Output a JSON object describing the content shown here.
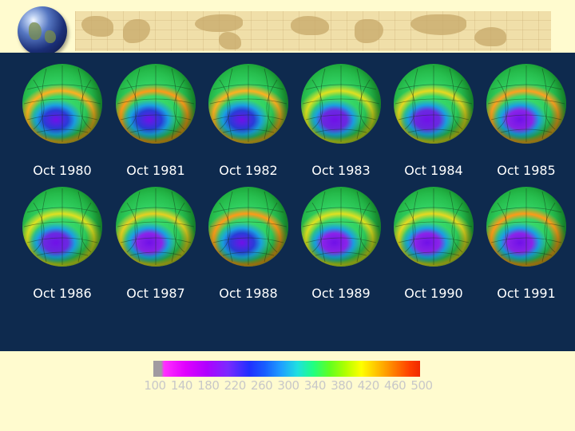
{
  "panels": [
    {
      "label": "Oct 1980"
    },
    {
      "label": "Oct 1981"
    },
    {
      "label": "Oct 1982"
    },
    {
      "label": "Oct 1983"
    },
    {
      "label": "Oct 1984"
    },
    {
      "label": "Oct 1985"
    },
    {
      "label": "Oct 1986"
    },
    {
      "label": "Oct 1987"
    },
    {
      "label": "Oct 1988"
    },
    {
      "label": "Oct 1989"
    },
    {
      "label": "Oct 1990"
    },
    {
      "label": "Oct 1991"
    }
  ],
  "scale": {
    "ticks": [
      "100",
      "140",
      "180",
      "220",
      "260",
      "300",
      "340",
      "380",
      "420",
      "460",
      "500"
    ]
  }
}
